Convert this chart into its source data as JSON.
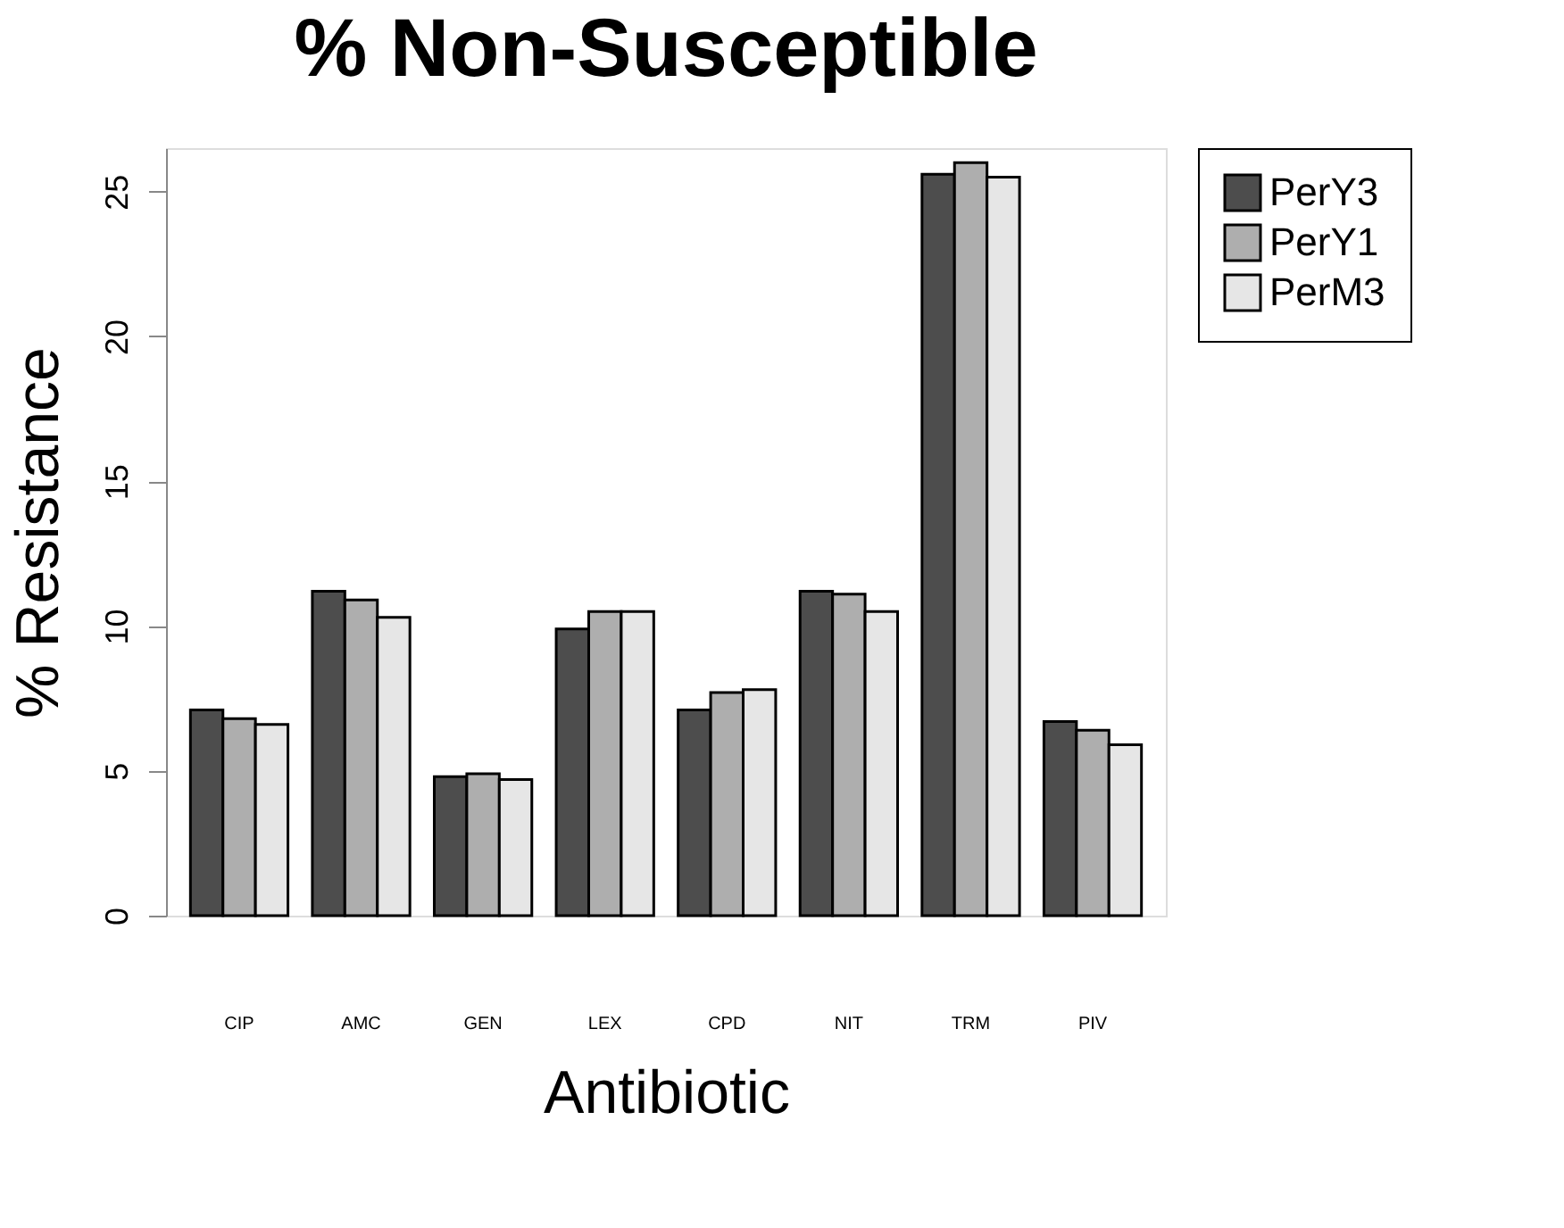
{
  "chart_data": {
    "type": "bar",
    "title": "% Non-Susceptible",
    "xlabel": "Antibiotic",
    "ylabel": "% Resistance",
    "categories": [
      "CIP",
      "AMC",
      "GEN",
      "LEX",
      "CPD",
      "NIT",
      "TRM",
      "PIV"
    ],
    "series": [
      {
        "name": "PerY3",
        "color": "#4d4d4d",
        "values": [
          7.1,
          11.2,
          4.8,
          9.9,
          7.1,
          11.2,
          25.6,
          6.7
        ]
      },
      {
        "name": "PerY1",
        "color": "#aeaeae",
        "values": [
          6.8,
          10.9,
          4.9,
          10.5,
          7.7,
          11.1,
          26.0,
          6.4
        ]
      },
      {
        "name": "PerM3",
        "color": "#e6e6e6",
        "values": [
          6.6,
          10.3,
          4.7,
          10.5,
          7.8,
          10.5,
          25.5,
          5.9
        ]
      }
    ],
    "ylim": [
      0,
      26.5
    ],
    "yticks": [
      0,
      5,
      10,
      15,
      20,
      25
    ],
    "grid": false,
    "legend": "top right"
  }
}
